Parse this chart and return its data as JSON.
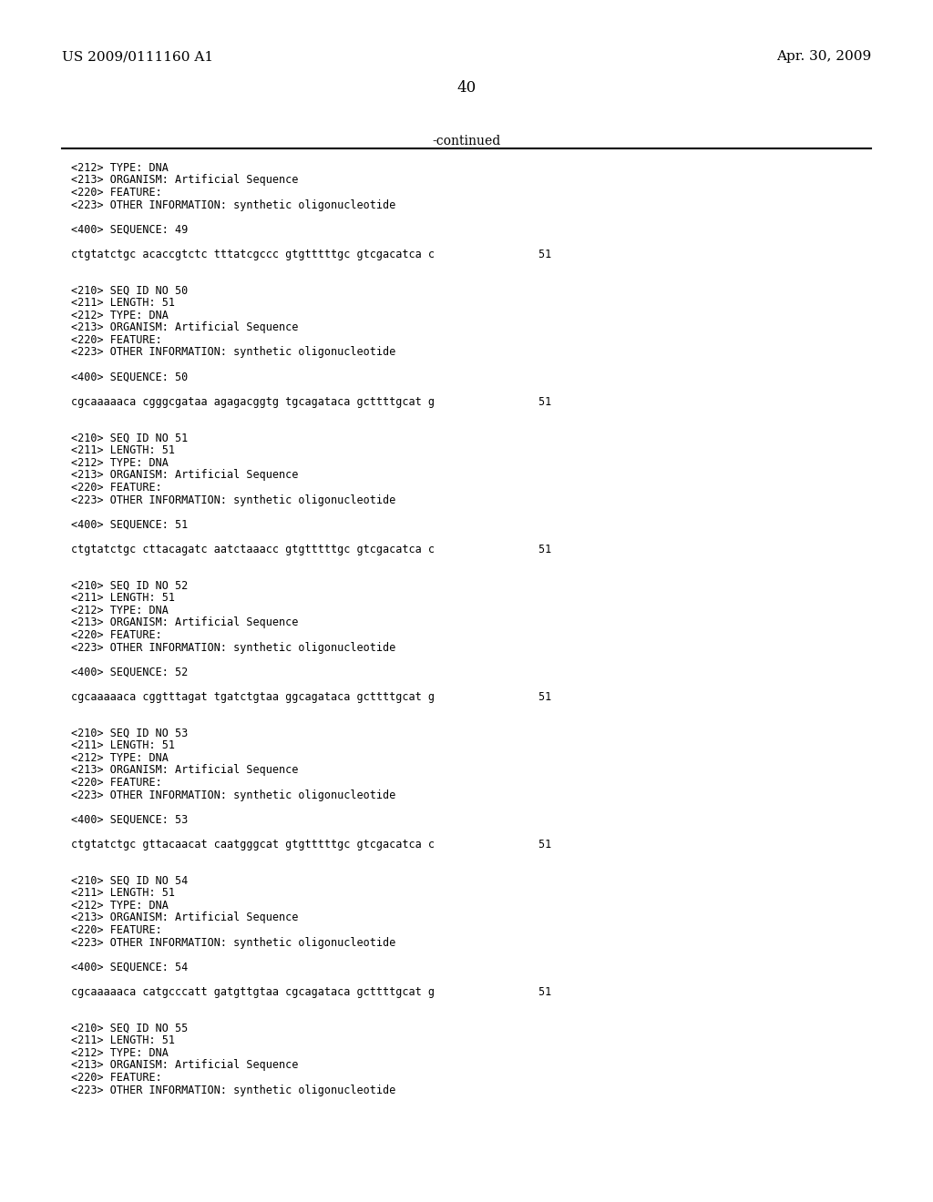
{
  "background_color": "#ffffff",
  "header_left": "US 2009/0111160 A1",
  "header_right": "Apr. 30, 2009",
  "page_number": "40",
  "continued_label": "-continued",
  "monospace_font": "DejaVu Sans Mono",
  "serif_font": "DejaVu Serif",
  "content_lines": [
    "<212> TYPE: DNA",
    "<213> ORGANISM: Artificial Sequence",
    "<220> FEATURE:",
    "<223> OTHER INFORMATION: synthetic oligonucleotide",
    "",
    "<400> SEQUENCE: 49",
    "",
    "ctgtatctgc acaccgtctc tttatcgccc gtgtttttgc gtcgacatca c                51",
    "",
    "",
    "<210> SEQ ID NO 50",
    "<211> LENGTH: 51",
    "<212> TYPE: DNA",
    "<213> ORGANISM: Artificial Sequence",
    "<220> FEATURE:",
    "<223> OTHER INFORMATION: synthetic oligonucleotide",
    "",
    "<400> SEQUENCE: 50",
    "",
    "cgcaaaaaca cgggcgataa agagacggtg tgcagataca gcttttgcat g                51",
    "",
    "",
    "<210> SEQ ID NO 51",
    "<211> LENGTH: 51",
    "<212> TYPE: DNA",
    "<213> ORGANISM: Artificial Sequence",
    "<220> FEATURE:",
    "<223> OTHER INFORMATION: synthetic oligonucleotide",
    "",
    "<400> SEQUENCE: 51",
    "",
    "ctgtatctgc cttacagatc aatctaaacc gtgtttttgc gtcgacatca c                51",
    "",
    "",
    "<210> SEQ ID NO 52",
    "<211> LENGTH: 51",
    "<212> TYPE: DNA",
    "<213> ORGANISM: Artificial Sequence",
    "<220> FEATURE:",
    "<223> OTHER INFORMATION: synthetic oligonucleotide",
    "",
    "<400> SEQUENCE: 52",
    "",
    "cgcaaaaaca cggtttagat tgatctgtaa ggcagataca gcttttgcat g                51",
    "",
    "",
    "<210> SEQ ID NO 53",
    "<211> LENGTH: 51",
    "<212> TYPE: DNA",
    "<213> ORGANISM: Artificial Sequence",
    "<220> FEATURE:",
    "<223> OTHER INFORMATION: synthetic oligonucleotide",
    "",
    "<400> SEQUENCE: 53",
    "",
    "ctgtatctgc gttacaacat caatgggcat gtgtttttgc gtcgacatca c                51",
    "",
    "",
    "<210> SEQ ID NO 54",
    "<211> LENGTH: 51",
    "<212> TYPE: DNA",
    "<213> ORGANISM: Artificial Sequence",
    "<220> FEATURE:",
    "<223> OTHER INFORMATION: synthetic oligonucleotide",
    "",
    "<400> SEQUENCE: 54",
    "",
    "cgcaaaaaca catgcccatt gatgttgtaa cgcagataca gcttttgcat g                51",
    "",
    "",
    "<210> SEQ ID NO 55",
    "<211> LENGTH: 51",
    "<212> TYPE: DNA",
    "<213> ORGANISM: Artificial Sequence",
    "<220> FEATURE:",
    "<223> OTHER INFORMATION: synthetic oligonucleotide"
  ]
}
